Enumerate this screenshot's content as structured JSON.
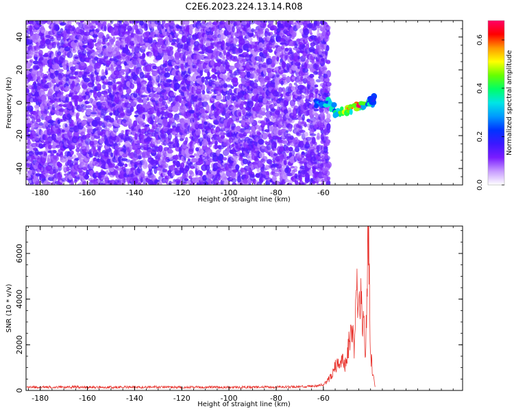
{
  "figure": {
    "title": "C2E6.2023.224.13.14.R08"
  },
  "colors": {
    "snr_line": "#e8332d",
    "axis": "#000000",
    "colormap": [
      "#ffffff",
      "#c79bff",
      "#7a1cff",
      "#3b18ff",
      "#0033ff",
      "#0099ff",
      "#00e5e5",
      "#00ff66",
      "#66ff00",
      "#ffff00",
      "#ff9900",
      "#ff0000",
      "#ff0066"
    ]
  },
  "chart_data": [
    {
      "type": "heatmap",
      "title": "C2E6.2023.224.13.14.R08",
      "xlabel": "Height of straight line (km)",
      "ylabel": "Frequency (Hz)",
      "xlim": [
        -186,
        -1
      ],
      "ylim": [
        -50,
        50
      ],
      "x_ticks": [
        -180,
        -160,
        -140,
        -120,
        -100,
        -80,
        -60
      ],
      "y_ticks": [
        -40,
        -20,
        0,
        20,
        40
      ],
      "colorbar": {
        "label": "Normalized spectral amplitude",
        "range": [
          0,
          0.68
        ],
        "ticks": [
          0.0,
          0.2,
          0.4,
          0.6
        ]
      },
      "noise_region_x": [
        -186,
        -58
      ],
      "noise_level": 0.1,
      "signal_track": [
        {
          "x": -62,
          "y": 0,
          "value": 0.3
        },
        {
          "x": -60,
          "y": -1,
          "value": 0.35
        },
        {
          "x": -58,
          "y": 0,
          "value": 0.4
        },
        {
          "x": -56,
          "y": -3,
          "value": 0.35
        },
        {
          "x": -54,
          "y": -6,
          "value": 0.45
        },
        {
          "x": -52,
          "y": -5,
          "value": 0.5
        },
        {
          "x": -50,
          "y": -5,
          "value": 0.55
        },
        {
          "x": -48,
          "y": -4,
          "value": 0.6
        },
        {
          "x": -46,
          "y": -3,
          "value": 0.6
        },
        {
          "x": -44,
          "y": -2,
          "value": 0.65
        },
        {
          "x": -42,
          "y": -1,
          "value": 0.45
        },
        {
          "x": -40,
          "y": 0,
          "value": 0.4
        },
        {
          "x": -39,
          "y": 2,
          "value": 0.3
        }
      ]
    },
    {
      "type": "line",
      "xlabel": "Height of straight line (km)",
      "ylabel": "SNR (10 * v/v)",
      "xlim": [
        -186,
        -1
      ],
      "ylim": [
        0,
        7200
      ],
      "x_ticks": [
        -180,
        -160,
        -140,
        -120,
        -100,
        -80,
        -60
      ],
      "y_ticks": [
        0,
        2000,
        4000,
        6000
      ],
      "series": [
        {
          "x": [
            -186,
            -170,
            -150,
            -130,
            -110,
            -90,
            -75,
            -65,
            -60,
            -57,
            -55,
            -53,
            -52,
            -51,
            -50,
            -49,
            -48,
            -47,
            -46,
            -45,
            -44,
            -43,
            -42,
            -41,
            -40,
            -39,
            -38
          ],
          "values": [
            150,
            150,
            140,
            150,
            140,
            140,
            150,
            180,
            250,
            500,
            900,
            1100,
            1300,
            1000,
            1200,
            1900,
            2600,
            1500,
            4000,
            2800,
            3600,
            2500,
            1400,
            7100,
            1500,
            600,
            150
          ]
        }
      ]
    }
  ]
}
